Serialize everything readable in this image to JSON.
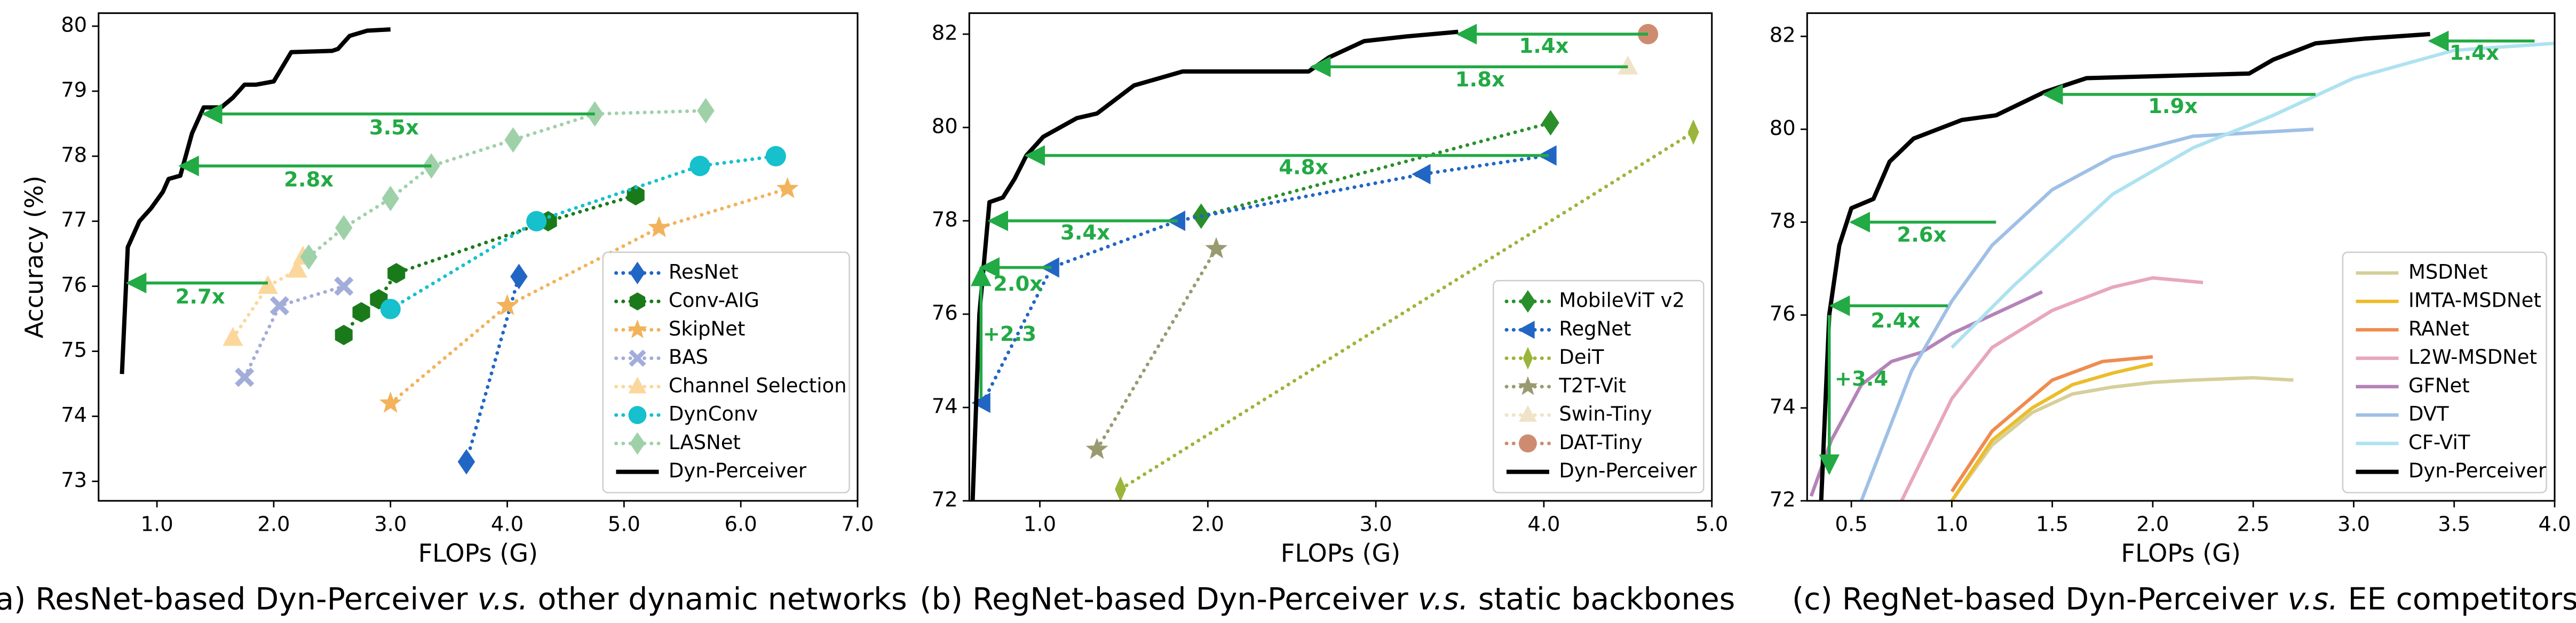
{
  "chart_data": [
    {
      "type": "line",
      "x_label": "FLOPs (G)",
      "y_label": "Accuracy (%)",
      "xlim": [
        0.5,
        7.0
      ],
      "ylim": [
        72.7,
        80.2
      ],
      "xticks": [
        {
          "value": 1,
          "label": "1.0"
        },
        {
          "value": 2,
          "label": "2.0"
        },
        {
          "value": 3,
          "label": "3.0"
        },
        {
          "value": 4,
          "label": "4.0"
        },
        {
          "value": 5,
          "label": "5.0"
        },
        {
          "value": 6,
          "label": "6.0"
        },
        {
          "value": 7,
          "label": "7.0"
        }
      ],
      "yticks": [
        73,
        74,
        75,
        76,
        77,
        78,
        79,
        80
      ],
      "legend": "lower right",
      "caption": [
        {
          "text": "(a) ResNet-based Dyn-Perceiver "
        },
        {
          "text": "v.s.",
          "italic": true
        },
        {
          "text": " other dynamic networks"
        }
      ],
      "annotations": [
        "3.5x",
        "2.8x",
        "2.7x"
      ],
      "series": [
        {
          "name": "ResNet",
          "color": "#2166c4",
          "marker": "diamond",
          "linestyle": "dotted",
          "x": [
            3.65,
            4.1
          ],
          "values": [
            73.3,
            76.15
          ]
        },
        {
          "name": "Conv-AIG",
          "color": "#1a7a1a",
          "marker": "hexagon",
          "linestyle": "dotted",
          "x": [
            2.6,
            2.75,
            2.9,
            3.05,
            4.35,
            5.1
          ],
          "values": [
            75.25,
            75.6,
            75.8,
            76.2,
            77.0,
            77.4
          ]
        },
        {
          "name": "SkipNet",
          "color": "#f2b35c",
          "marker": "star",
          "linestyle": "dotted",
          "x": [
            3.0,
            4.0,
            5.3,
            6.4
          ],
          "values": [
            74.2,
            75.7,
            76.9,
            77.5
          ]
        },
        {
          "name": "BAS",
          "color": "#a3add9",
          "marker": "x",
          "linestyle": "dotted",
          "x": [
            1.75,
            2.05,
            2.6
          ],
          "values": [
            74.6,
            75.7,
            76.0
          ]
        },
        {
          "name": "Channel Selection",
          "color": "#fcd79c",
          "marker": "triangle-up",
          "linestyle": "dotted",
          "x": [
            1.65,
            1.95,
            2.2,
            2.25
          ],
          "values": [
            75.2,
            76.0,
            76.25,
            76.45
          ]
        },
        {
          "name": "DynConv",
          "color": "#16c0cc",
          "marker": "circle",
          "linestyle": "dotted",
          "x": [
            3.0,
            4.25,
            5.65,
            6.3
          ],
          "values": [
            75.65,
            77.0,
            77.85,
            78.0
          ]
        },
        {
          "name": "LASNet",
          "color": "#9fd1a9",
          "marker": "diamond",
          "linestyle": "dotted",
          "x": [
            2.3,
            2.6,
            3.0,
            3.35,
            4.05,
            4.75,
            5.7
          ],
          "values": [
            76.45,
            76.9,
            77.35,
            77.85,
            78.25,
            78.65,
            78.7
          ]
        },
        {
          "name": "Dyn-Perceiver",
          "color": "#000000",
          "marker": "none",
          "linestyle": "solid",
          "x": [
            0.7,
            0.75,
            0.85,
            0.95,
            1.05,
            1.1,
            1.2,
            1.3,
            1.4,
            1.55,
            1.65,
            1.75,
            1.85,
            2.0,
            2.15,
            2.5,
            2.55,
            2.65,
            2.8,
            3.0
          ],
          "values": [
            74.65,
            76.6,
            77.0,
            77.2,
            77.45,
            77.65,
            77.7,
            78.35,
            78.75,
            78.75,
            78.9,
            79.1,
            79.1,
            79.15,
            79.6,
            79.62,
            79.65,
            79.85,
            79.93,
            79.95
          ]
        }
      ]
    },
    {
      "type": "line",
      "x_label": "FLOPs (G)",
      "xlim": [
        0.58,
        5.0
      ],
      "ylim": [
        72,
        82.45
      ],
      "xticks": [
        {
          "value": 1,
          "label": "1.0"
        },
        {
          "value": 2,
          "label": "2.0"
        },
        {
          "value": 3,
          "label": "3.0"
        },
        {
          "value": 4,
          "label": "4.0"
        },
        {
          "value": 5,
          "label": "5.0"
        }
      ],
      "yticks": [
        72,
        74,
        76,
        78,
        80,
        82
      ],
      "legend": "lower right",
      "caption": [
        {
          "text": "(b) RegNet-based Dyn-Perceiver "
        },
        {
          "text": "v.s.",
          "italic": true
        },
        {
          "text": " static backbones"
        }
      ],
      "annotations": [
        "1.4x",
        "1.8x",
        "4.8x",
        "3.4x",
        "2.0x",
        "+2.3"
      ],
      "series": [
        {
          "name": "MobileViT v2",
          "color": "#2a8f2a",
          "marker": "diamond",
          "linestyle": "dotted",
          "x": [
            1.96,
            4.04
          ],
          "values": [
            78.1,
            80.1
          ]
        },
        {
          "name": "RegNet",
          "color": "#2166c4",
          "marker": "triangle-left",
          "linestyle": "dotted",
          "x": [
            0.66,
            1.07,
            1.82,
            3.28,
            4.03
          ],
          "values": [
            74.1,
            77.0,
            78.0,
            79.0,
            79.4
          ]
        },
        {
          "name": "DeiT",
          "color": "#9ab53a",
          "marker": "thin-diamond",
          "linestyle": "dotted",
          "x": [
            1.48,
            4.89
          ],
          "values": [
            72.25,
            79.9
          ]
        },
        {
          "name": "T2T-Vit",
          "color": "#9a9a70",
          "marker": "star",
          "linestyle": "dotted",
          "x": [
            1.34,
            2.05
          ],
          "values": [
            73.1,
            77.4
          ]
        },
        {
          "name": "Swin-Tiny",
          "color": "#efe3c8",
          "marker": "triangle-up",
          "linestyle": "dotted",
          "x": [
            4.5
          ],
          "values": [
            81.3
          ]
        },
        {
          "name": "DAT-Tiny",
          "color": "#cd8c70",
          "marker": "circle",
          "linestyle": "dotted",
          "x": [
            4.62
          ],
          "values": [
            82.0
          ]
        },
        {
          "name": "Dyn-Perceiver",
          "color": "#000000",
          "marker": "none",
          "linestyle": "solid",
          "x": [
            0.6,
            0.64,
            0.7,
            0.78,
            0.85,
            0.92,
            1.02,
            1.22,
            1.34,
            1.56,
            1.85,
            2.6,
            2.72,
            2.93,
            3.18,
            3.49
          ],
          "values": [
            72,
            76,
            78.4,
            78.5,
            78.9,
            79.4,
            79.8,
            80.2,
            80.3,
            80.9,
            81.2,
            81.2,
            81.5,
            81.85,
            81.95,
            82.05
          ]
        }
      ]
    },
    {
      "type": "line",
      "x_label": "FLOPs (G)",
      "xlim": [
        0.28,
        4.0
      ],
      "ylim": [
        72,
        82.5
      ],
      "xticks": [
        0.5,
        {
          "value": 1,
          "label": "1.0"
        },
        1.5,
        {
          "value": 2,
          "label": "2.0"
        },
        2.5,
        {
          "value": 3,
          "label": "3.0"
        },
        3.5,
        {
          "value": 4,
          "label": "4.0"
        }
      ],
      "yticks": [
        72,
        74,
        76,
        78,
        80,
        82
      ],
      "legend": "lower right",
      "caption": [
        {
          "text": "(c) RegNet-based Dyn-Perceiver "
        },
        {
          "text": "v.s.",
          "italic": true
        },
        {
          "text": " EE competitors"
        }
      ],
      "annotations": [
        "1.4x",
        "1.9x",
        "2.6x",
        "2.4x",
        "+3.4"
      ],
      "series": [
        {
          "name": "MSDNet",
          "color": "#d6cf9a",
          "marker": "none",
          "linestyle": "solid",
          "x": [
            1.0,
            1.2,
            1.4,
            1.6,
            1.8,
            2.0,
            2.2,
            2.5,
            2.7
          ],
          "values": [
            72,
            73.2,
            73.9,
            74.3,
            74.45,
            74.55,
            74.6,
            74.65,
            74.6
          ]
        },
        {
          "name": "IMTA-MSDNet",
          "color": "#ecbd2a",
          "marker": "none",
          "linestyle": "solid",
          "x": [
            1.0,
            1.2,
            1.4,
            1.6,
            1.8,
            2.0
          ],
          "values": [
            72,
            73.3,
            74.0,
            74.5,
            74.75,
            74.95
          ]
        },
        {
          "name": "RANet",
          "color": "#ef8c50",
          "marker": "none",
          "linestyle": "solid",
          "x": [
            1.0,
            1.2,
            1.5,
            1.75,
            2.0
          ],
          "values": [
            72.2,
            73.5,
            74.6,
            75.0,
            75.1
          ]
        },
        {
          "name": "L2W-MSDNet",
          "color": "#e8a6bf",
          "marker": "none",
          "linestyle": "solid",
          "x": [
            0.75,
            1.0,
            1.2,
            1.5,
            1.8,
            2.0,
            2.25
          ],
          "values": [
            72,
            74.2,
            75.3,
            76.1,
            76.6,
            76.8,
            76.7
          ]
        },
        {
          "name": "GFNet",
          "color": "#b483b8",
          "marker": "none",
          "linestyle": "solid",
          "x": [
            0.3,
            0.4,
            0.55,
            0.7,
            0.85,
            1.0,
            1.2,
            1.45
          ],
          "values": [
            72.1,
            73.3,
            74.5,
            75.0,
            75.2,
            75.6,
            76.0,
            76.5
          ]
        },
        {
          "name": "DVT",
          "color": "#9fc0e6",
          "marker": "none",
          "linestyle": "solid",
          "x": [
            0.55,
            0.8,
            1.0,
            1.2,
            1.5,
            1.8,
            2.2,
            2.8
          ],
          "values": [
            72,
            74.8,
            76.3,
            77.5,
            78.7,
            79.4,
            79.85,
            80.0
          ]
        },
        {
          "name": "CF-ViT",
          "color": "#aee2f0",
          "marker": "none",
          "linestyle": "solid",
          "x": [
            1.0,
            1.3,
            1.5,
            1.8,
            2.2,
            2.6,
            3.0,
            3.5,
            4.0
          ],
          "values": [
            75.3,
            76.6,
            77.4,
            78.6,
            79.6,
            80.3,
            81.1,
            81.7,
            81.85
          ]
        },
        {
          "name": "Dyn-Perceiver",
          "color": "#000000",
          "marker": "none",
          "linestyle": "solid",
          "x": [
            0.35,
            0.39,
            0.44,
            0.5,
            0.61,
            0.69,
            0.81,
            0.93,
            1.05,
            1.22,
            1.46,
            1.67,
            2.48,
            2.6,
            2.81,
            3.05,
            3.38
          ],
          "values": [
            72,
            76,
            77.5,
            78.3,
            78.5,
            79.3,
            79.8,
            80.0,
            80.2,
            80.3,
            80.8,
            81.1,
            81.2,
            81.5,
            81.85,
            81.95,
            82.05
          ]
        }
      ]
    }
  ]
}
